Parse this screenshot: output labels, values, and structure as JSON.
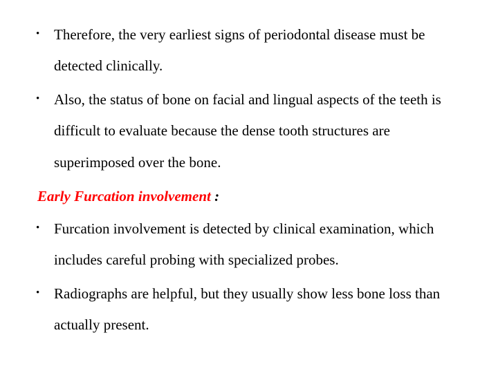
{
  "text_color": "#000000",
  "accent_color": "#ff0000",
  "background_color": "#ffffff",
  "font_family": "Times New Roman",
  "bullets_top": [
    "Therefore, the very earliest signs of periodontal disease must be detected clinically.",
    " Also, the status of bone on facial and lingual aspects of the teeth is difficult to evaluate because the dense tooth structures are superimposed over the bone."
  ],
  "heading": {
    "text_red": "Early Furcation involvement",
    "text_black": " :"
  },
  "bullets_bottom": [
    "Furcation involvement is detected by clinical examination, which includes careful probing with specialized probes.",
    "Radiographs are helpful, but they usually show less bone loss than actually present."
  ]
}
